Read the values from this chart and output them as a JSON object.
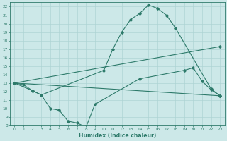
{
  "line1_x": [
    0,
    1,
    2,
    3,
    10,
    11,
    12,
    13,
    14,
    15,
    16,
    17,
    18,
    22,
    23
  ],
  "line1_y": [
    13,
    12.8,
    12.1,
    11.6,
    14.5,
    17.0,
    19.0,
    20.5,
    21.2,
    22.2,
    21.8,
    21.0,
    19.5,
    12.3,
    11.5
  ],
  "line2_x": [
    0,
    2,
    3,
    4,
    5,
    6,
    7,
    8,
    9,
    14,
    19,
    20,
    21,
    22,
    23
  ],
  "line2_y": [
    13,
    12.1,
    11.6,
    10.0,
    9.8,
    8.5,
    8.3,
    7.8,
    10.5,
    13.5,
    14.5,
    14.8,
    13.2,
    12.2,
    11.5
  ],
  "line3_x": [
    0,
    23
  ],
  "line3_y": [
    13.0,
    17.3
  ],
  "line4_x": [
    0,
    23
  ],
  "line4_y": [
    13.0,
    11.5
  ],
  "color": "#2d7a6a",
  "bg_color": "#cce8e8",
  "grid_color": "#aed4d4",
  "xlabel": "Humidex (Indice chaleur)",
  "ylim": [
    8,
    22.5
  ],
  "xlim": [
    -0.5,
    23.5
  ],
  "yticks": [
    8,
    9,
    10,
    11,
    12,
    13,
    14,
    15,
    16,
    17,
    18,
    19,
    20,
    21,
    22
  ],
  "xticks": [
    0,
    1,
    2,
    3,
    4,
    5,
    6,
    7,
    8,
    9,
    10,
    11,
    12,
    13,
    14,
    15,
    16,
    17,
    18,
    19,
    20,
    21,
    22,
    23
  ]
}
